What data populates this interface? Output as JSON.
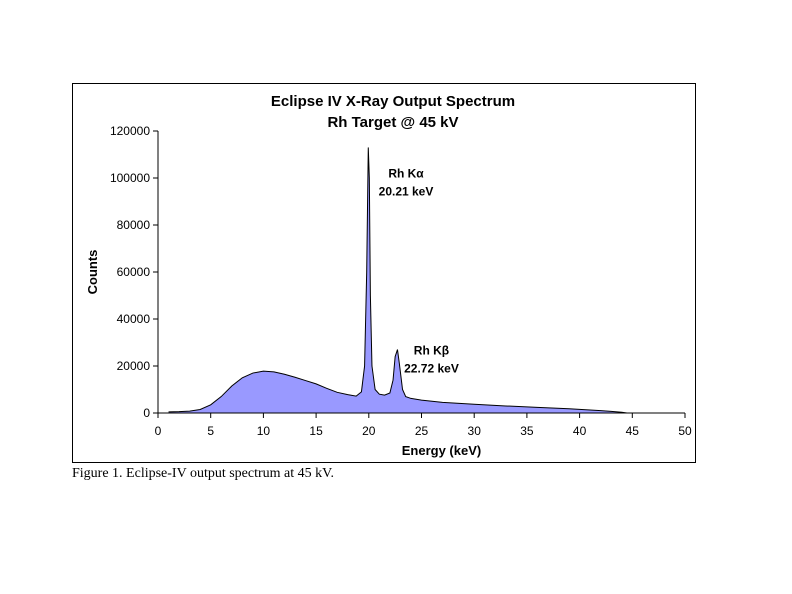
{
  "caption": "Figure 1. Eclipse-IV output spectrum at 45 kV.",
  "chart_data": {
    "type": "area",
    "title": [
      "Eclipse IV X-Ray Output Spectrum",
      "Rh Target @ 45 kV"
    ],
    "xlabel": "Energy (keV)",
    "ylabel": "Counts",
    "xlim": [
      0,
      50
    ],
    "ylim": [
      0,
      120000
    ],
    "xticks": [
      0,
      5,
      10,
      15,
      20,
      25,
      30,
      35,
      40,
      45,
      50
    ],
    "yticks": [
      0,
      20000,
      40000,
      60000,
      80000,
      100000,
      120000
    ],
    "grid": false,
    "fill_color": "#9999ff",
    "line_color": "#000000",
    "series": [
      {
        "x": [
          1.0,
          2.0,
          3.0,
          4.0,
          5.0,
          6.0,
          7.0,
          8.0,
          9.0,
          10.0,
          11.0,
          12.0,
          13.0,
          14.0,
          15.0,
          16.0,
          17.0,
          18.0,
          18.8,
          19.3,
          19.6,
          19.8,
          19.95,
          20.05,
          20.15,
          20.3,
          20.6,
          21.0,
          21.5,
          22.0,
          22.3,
          22.5,
          22.72,
          22.9,
          23.2,
          23.5,
          24.0,
          25.0,
          27.0,
          30.0,
          33.0,
          36.0,
          39.0,
          41.0,
          42.0,
          43.0,
          44.0,
          44.5
        ],
        "y": [
          500,
          600,
          800,
          1500,
          3500,
          7000,
          11500,
          15000,
          17000,
          17800,
          17500,
          16500,
          15200,
          13800,
          12400,
          10500,
          8800,
          7800,
          7200,
          9000,
          20000,
          60000,
          113000,
          100000,
          50000,
          20000,
          10000,
          8000,
          7600,
          8500,
          14000,
          24000,
          27000,
          21000,
          10000,
          7000,
          6200,
          5500,
          4500,
          3700,
          3000,
          2400,
          1800,
          1300,
          1000,
          700,
          300,
          0
        ]
      }
    ],
    "annotations": [
      {
        "lines": [
          "Rh Kα",
          "20.21 keV"
        ],
        "x": 20.21,
        "y": 113000
      },
      {
        "lines": [
          "Rh Kβ",
          "22.72 keV"
        ],
        "x": 22.72,
        "y": 27000
      }
    ]
  }
}
